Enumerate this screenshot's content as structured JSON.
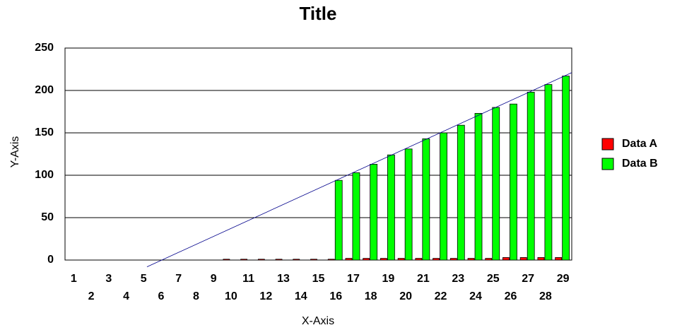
{
  "chart_data": {
    "type": "bar",
    "title": "Title",
    "x_label": "X-Axis",
    "y_label": "Y-Axis",
    "categories": [
      "1",
      "2",
      "3",
      "4",
      "5",
      "6",
      "7",
      "8",
      "9",
      "10",
      "11",
      "12",
      "13",
      "14",
      "15",
      "16",
      "17",
      "18",
      "19",
      "20",
      "21",
      "22",
      "23",
      "24",
      "25",
      "26",
      "27",
      "28",
      "29"
    ],
    "series": [
      {
        "name": "Data A",
        "color": "#ff0000",
        "values": [
          0,
          0,
          0,
          0,
          0,
          0,
          0,
          0,
          0,
          1,
          1,
          1,
          1,
          1,
          1,
          1,
          2,
          2,
          2,
          2,
          2,
          2,
          2,
          2,
          2,
          3,
          3,
          3,
          3
        ]
      },
      {
        "name": "Data B",
        "color": "#00ff00",
        "values": [
          0,
          0,
          0,
          0,
          0,
          0,
          0,
          0,
          0,
          0,
          0,
          0,
          0,
          0,
          0,
          94,
          103,
          113,
          124,
          131,
          143,
          150,
          159,
          173,
          180,
          184,
          198,
          207,
          217
        ]
      }
    ],
    "trendline": {
      "color": "#00008b",
      "x": [
        4.69,
        29
      ],
      "values": [
        -8,
        221
      ]
    },
    "ylim": [
      0,
      250
    ],
    "yticks": [
      0,
      50,
      100,
      150,
      200,
      250
    ],
    "grid": true,
    "legend": "right"
  }
}
